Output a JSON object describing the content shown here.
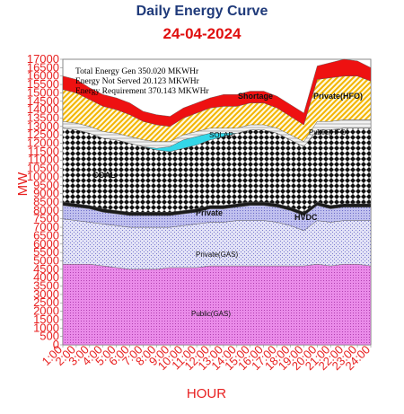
{
  "chart_data": {
    "type": "area",
    "title": "Daily Energy Curve",
    "subtitle": "24-04-2024",
    "xlabel": "HOUR",
    "ylabel": "MW",
    "ylim": [
      0,
      17000
    ],
    "y_tick_step": 500,
    "stacked": true,
    "x": [
      "1:00",
      "2:00",
      "3:00",
      "4:00",
      "5:00",
      "6:00",
      "7:00",
      "8:00",
      "9:00",
      "10:00",
      "11:00",
      "12:00",
      "13:00",
      "14:00",
      "15:00",
      "16:00",
      "17:00",
      "18:00",
      "19:00",
      "20:00",
      "21:00",
      "22:00",
      "23:00",
      "24:00"
    ],
    "annotations": [
      "Total Energy Gen 350.020 MKWHr",
      "Energy Not Served   20.123 MKWHr",
      "Energy Requirement    370.143 MKWHr"
    ],
    "series": [
      {
        "name": "Public(GAS)",
        "color": "#e37ce3",
        "values": [
          4800,
          4800,
          4800,
          4700,
          4600,
          4500,
          4500,
          4500,
          4600,
          4600,
          4600,
          4700,
          4700,
          4700,
          4700,
          4700,
          4700,
          4700,
          4700,
          4800,
          4700,
          4800,
          4800,
          4700
        ]
      },
      {
        "name": "Private(GAS)",
        "color": "#c9c9f0",
        "values": [
          2700,
          2600,
          2500,
          2500,
          2500,
          2500,
          2500,
          2500,
          2400,
          2500,
          2600,
          2600,
          2600,
          2700,
          2700,
          2700,
          2600,
          2400,
          2100,
          2600,
          2600,
          2600,
          2600,
          2700
        ]
      },
      {
        "name": "Private",
        "color": "#c7c7ef",
        "values": [
          800,
          800,
          800,
          700,
          700,
          700,
          700,
          700,
          700,
          700,
          700,
          800,
          800,
          800,
          900,
          900,
          900,
          900,
          900,
          900,
          800,
          800,
          800,
          800
        ]
      },
      {
        "name": "HVDC",
        "color": "#1a1a1a",
        "values": [
          200,
          200,
          200,
          200,
          200,
          200,
          200,
          200,
          200,
          200,
          200,
          200,
          200,
          200,
          200,
          200,
          200,
          200,
          200,
          200,
          200,
          200,
          200,
          200
        ]
      },
      {
        "name": "COAL",
        "color": "#111111",
        "values": [
          4400,
          4400,
          4300,
          4200,
          4200,
          4100,
          3900,
          3700,
          3600,
          3700,
          3800,
          3900,
          4100,
          4200,
          4300,
          4300,
          4200,
          4000,
          3900,
          4300,
          4500,
          4500,
          4500,
          4500
        ]
      },
      {
        "name": "SOLAR",
        "color": "#33d7e8",
        "values": [
          0,
          0,
          0,
          0,
          0,
          0,
          0,
          100,
          300,
          500,
          500,
          400,
          200,
          0,
          0,
          0,
          0,
          0,
          0,
          0,
          0,
          0,
          0,
          0
        ]
      },
      {
        "name": "Public(HFO)",
        "color": "#eeeeee",
        "values": [
          400,
          400,
          400,
          400,
          400,
          400,
          400,
          400,
          300,
          300,
          300,
          300,
          300,
          300,
          300,
          300,
          300,
          300,
          300,
          500,
          500,
          500,
          500,
          500
        ]
      },
      {
        "name": "Private(HFO)",
        "color": "#f7c42e",
        "values": [
          1900,
          1800,
          1600,
          1500,
          1400,
          1300,
          1100,
          1000,
          900,
          1000,
          1100,
          1200,
          1300,
          1300,
          1300,
          1300,
          1200,
          1100,
          1000,
          2500,
          2600,
          2600,
          2600,
          2300
        ]
      },
      {
        "name": "Shortage",
        "color": "#ee1111",
        "values": [
          800,
          800,
          700,
          700,
          700,
          700,
          600,
          600,
          600,
          600,
          600,
          600,
          700,
          700,
          700,
          700,
          700,
          700,
          700,
          800,
          900,
          1000,
          900,
          800
        ]
      }
    ],
    "labels_on_chart": {
      "shortage": "Shortage",
      "private_hfo": "Private(HFO)",
      "public_hfo": "Public(HFO)",
      "solar": "SOLAR",
      "coal": "COAL",
      "private": "Private",
      "hvdc": "HVDC",
      "private_gas": "Private(GAS)",
      "public_gas": "Public(GAS)"
    }
  }
}
